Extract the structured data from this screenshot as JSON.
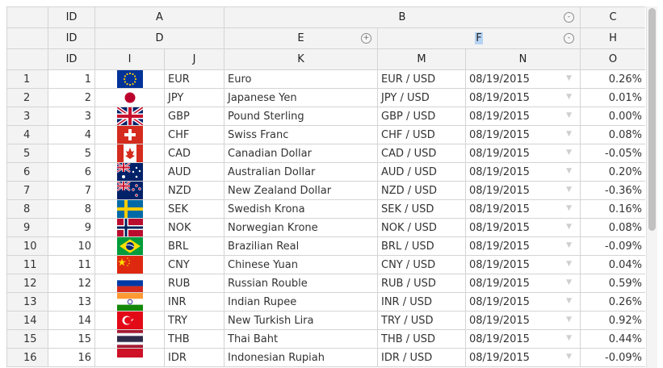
{
  "headers": {
    "row1": [
      {
        "label": "ID",
        "colspan": 1
      },
      {
        "label": "A",
        "colspan": 2
      },
      {
        "label": "B",
        "colspan": 3,
        "button": "collapse"
      },
      {
        "label": "C",
        "colspan": 1
      }
    ],
    "row2": [
      {
        "label": "ID",
        "colspan": 1
      },
      {
        "label": "D",
        "colspan": 2
      },
      {
        "label": "E",
        "colspan": 1,
        "button": "expand"
      },
      {
        "label": "F",
        "colspan": 2,
        "button": "collapse",
        "selected": true
      },
      {
        "label": "H",
        "colspan": 1
      }
    ],
    "row3": [
      "ID",
      "I",
      "J",
      "K",
      "M",
      "N",
      "O"
    ]
  },
  "icons": {
    "collapse": {
      "name": "collapse-icon",
      "glyph": "-"
    },
    "expand": {
      "name": "expand-icon",
      "glyph": "+"
    },
    "dropdown": {
      "name": "dropdown-arrow-icon",
      "glyph": "▼"
    }
  },
  "rows": [
    {
      "rn": "1",
      "id": "1",
      "flag": "eu",
      "code": "EUR",
      "name": "Euro",
      "pair": "EUR / USD",
      "date": "08/19/2015",
      "change": "0.26%"
    },
    {
      "rn": "2",
      "id": "2",
      "flag": "jp",
      "code": "JPY",
      "name": "Japanese Yen",
      "pair": "JPY / USD",
      "date": "08/19/2015",
      "change": "0.01%"
    },
    {
      "rn": "3",
      "id": "3",
      "flag": "gb",
      "code": "GBP",
      "name": "Pound Sterling",
      "pair": "GBP / USD",
      "date": "08/19/2015",
      "change": "0.00%"
    },
    {
      "rn": "4",
      "id": "4",
      "flag": "ch",
      "code": "CHF",
      "name": "Swiss Franc",
      "pair": "CHF / USD",
      "date": "08/19/2015",
      "change": "0.08%"
    },
    {
      "rn": "5",
      "id": "5",
      "flag": "ca",
      "code": "CAD",
      "name": "Canadian Dollar",
      "pair": "CAD / USD",
      "date": "08/19/2015",
      "change": "-0.05%"
    },
    {
      "rn": "6",
      "id": "6",
      "flag": "au",
      "code": "AUD",
      "name": "Australian Dollar",
      "pair": "AUD / USD",
      "date": "08/19/2015",
      "change": "0.20%"
    },
    {
      "rn": "7",
      "id": "7",
      "flag": "nz",
      "code": "NZD",
      "name": "New Zealand Dollar",
      "pair": "NZD / USD",
      "date": "08/19/2015",
      "change": "-0.36%"
    },
    {
      "rn": "8",
      "id": "8",
      "flag": "se",
      "code": "SEK",
      "name": "Swedish Krona",
      "pair": "SEK / USD",
      "date": "08/19/2015",
      "change": "0.16%"
    },
    {
      "rn": "9",
      "id": "9",
      "flag": "no",
      "code": "NOK",
      "name": "Norwegian Krone",
      "pair": "NOK / USD",
      "date": "08/19/2015",
      "change": "0.08%"
    },
    {
      "rn": "10",
      "id": "10",
      "flag": "br",
      "code": "BRL",
      "name": "Brazilian Real",
      "pair": "BRL / USD",
      "date": "08/19/2015",
      "change": "-0.09%"
    },
    {
      "rn": "11",
      "id": "11",
      "flag": "cn",
      "code": "CNY",
      "name": "Chinese Yuan",
      "pair": "CNY / USD",
      "date": "08/19/2015",
      "change": "0.04%"
    },
    {
      "rn": "12",
      "id": "12",
      "flag": "ru",
      "code": "RUB",
      "name": "Russian Rouble",
      "pair": "RUB / USD",
      "date": "08/19/2015",
      "change": "0.59%"
    },
    {
      "rn": "13",
      "id": "13",
      "flag": "in",
      "code": "INR",
      "name": "Indian Rupee",
      "pair": "INR / USD",
      "date": "08/19/2015",
      "change": "0.26%"
    },
    {
      "rn": "14",
      "id": "14",
      "flag": "tr",
      "code": "TRY",
      "name": "New Turkish Lira",
      "pair": "TRY / USD",
      "date": "08/19/2015",
      "change": "0.92%"
    },
    {
      "rn": "15",
      "id": "15",
      "flag": "th",
      "code": "THB",
      "name": "Thai Baht",
      "pair": "THB / USD",
      "date": "08/19/2015",
      "change": "0.44%"
    },
    {
      "rn": "16",
      "id": "16",
      "flag": "id",
      "code": "IDR",
      "name": "Indonesian Rupiah",
      "pair": "IDR / USD",
      "date": "08/19/2015",
      "change": "-0.09%"
    }
  ]
}
